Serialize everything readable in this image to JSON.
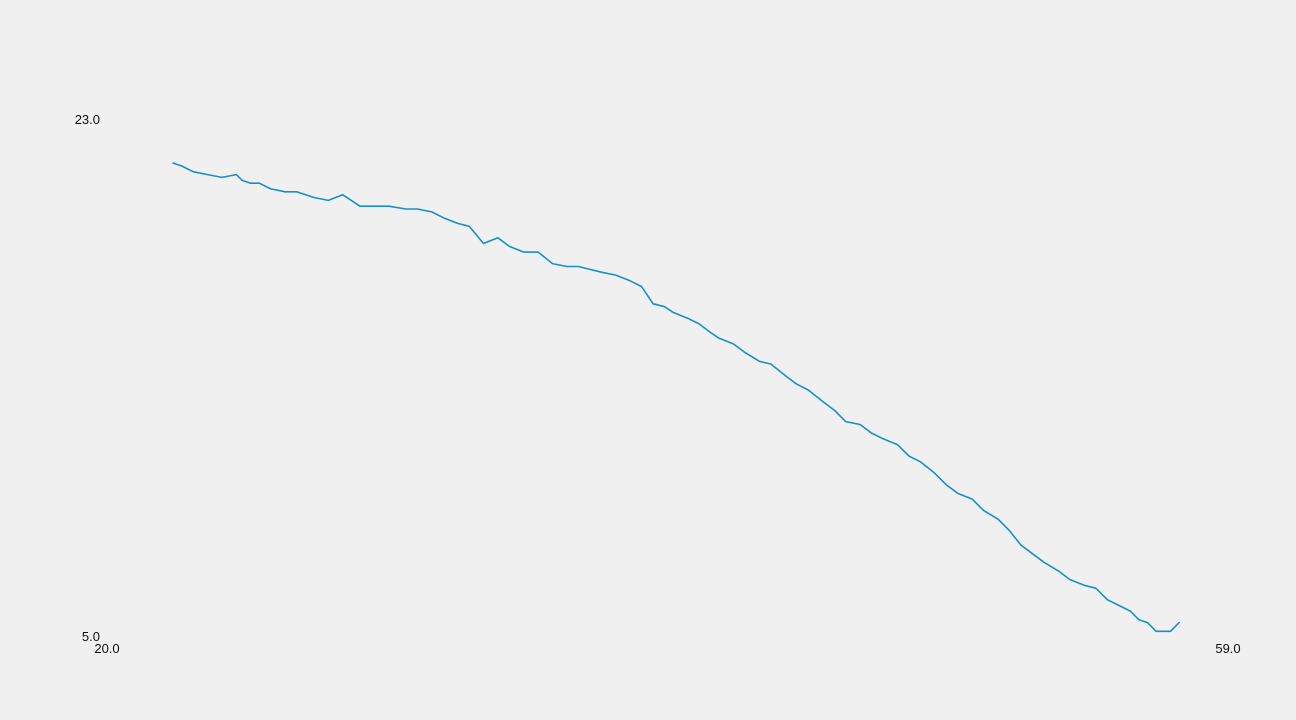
{
  "chart_data": {
    "type": "line",
    "title": "",
    "xlabel": "",
    "ylabel": "",
    "xlim": [
      20.0,
      59.0
    ],
    "ylim": [
      5.0,
      23.0
    ],
    "x_ticks": [
      "20.0",
      "59.0"
    ],
    "y_ticks": [
      "23.0",
      "5.0"
    ],
    "grid": false,
    "legend": "none",
    "line_color": "#1790c8",
    "series": [
      {
        "x": [
          22.3,
          22.6,
          23.0,
          23.5,
          24.0,
          24.5,
          24.7,
          25.0,
          25.3,
          25.7,
          26.2,
          26.6,
          27.2,
          27.7,
          28.2,
          28.8,
          29.3,
          29.8,
          30.4,
          30.8,
          31.3,
          31.7,
          32.2,
          32.6,
          33.1,
          33.6,
          34.0,
          34.5,
          35.0,
          35.5,
          36.0,
          36.4,
          36.8,
          37.2,
          37.7,
          38.2,
          38.6,
          39.0,
          39.4,
          39.7,
          40.2,
          40.6,
          41.0,
          41.3,
          41.8,
          42.2,
          42.7,
          43.1,
          43.6,
          44.0,
          44.4,
          44.9,
          45.3,
          45.7,
          46.2,
          46.6,
          47.0,
          47.5,
          47.9,
          48.3,
          48.8,
          49.2,
          49.6,
          50.1,
          50.5,
          51.0,
          51.4,
          51.8,
          52.2,
          52.6,
          53.1,
          53.5,
          54.0,
          54.4,
          54.8,
          55.2,
          55.6,
          55.9,
          56.2,
          56.5,
          57.0,
          57.3
        ],
        "y": [
          21.5,
          21.4,
          21.2,
          21.1,
          21.0,
          21.1,
          20.9,
          20.8,
          20.8,
          20.6,
          20.5,
          20.5,
          20.3,
          20.2,
          20.4,
          20.0,
          20.0,
          20.0,
          19.9,
          19.9,
          19.8,
          19.6,
          19.4,
          19.3,
          18.7,
          18.9,
          18.6,
          18.4,
          18.4,
          18.0,
          17.9,
          17.9,
          17.8,
          17.7,
          17.6,
          17.4,
          17.2,
          16.6,
          16.5,
          16.3,
          16.1,
          15.9,
          15.6,
          15.4,
          15.2,
          14.9,
          14.6,
          14.5,
          14.1,
          13.8,
          13.6,
          13.2,
          12.9,
          12.5,
          12.4,
          12.1,
          11.9,
          11.7,
          11.3,
          11.1,
          10.7,
          10.3,
          10.0,
          9.8,
          9.4,
          9.1,
          8.7,
          8.2,
          7.9,
          7.6,
          7.3,
          7.0,
          6.8,
          6.7,
          6.3,
          6.1,
          5.9,
          5.6,
          5.5,
          5.2,
          5.2,
          5.5
        ]
      }
    ]
  }
}
